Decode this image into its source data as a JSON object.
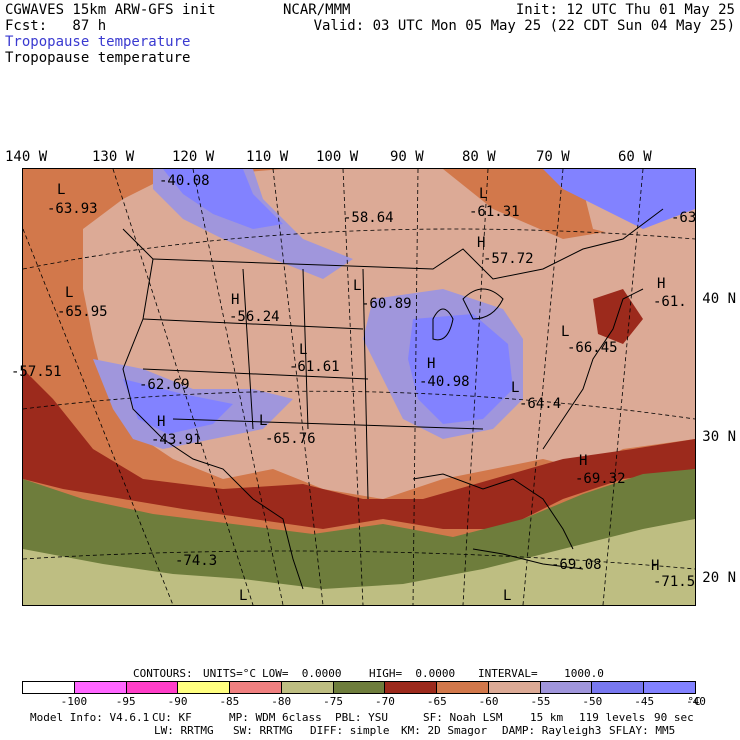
{
  "header": {
    "model": "CGWAVES 15km ARW-GFS init",
    "fcst": "Fcst:   87 h",
    "field_colored": "Tropopause temperature",
    "field_black": "Tropopause temperature",
    "org": "NCAR/MMM",
    "init": "Init: 12 UTC Thu 01 May 25",
    "valid": "Valid: 03 UTC Mon 05 May 25 (22 CDT Sun 04 May 25)"
  },
  "longitudes": [
    "140 W",
    "130 W",
    "120 W",
    "110 W",
    "100 W",
    "90 W",
    "80 W",
    "70 W",
    "60 W"
  ],
  "latitudes": [
    "40 N",
    "30 N",
    "20 N"
  ],
  "map_labels": [
    {
      "kind": "L",
      "text": "L"
    },
    {
      "kind": "value",
      "text": "-63.93"
    },
    {
      "kind": "value",
      "text": "-40.08"
    },
    {
      "kind": "value",
      "text": "-58.64"
    },
    {
      "kind": "L",
      "text": "L"
    },
    {
      "kind": "value",
      "text": "-61.31"
    },
    {
      "kind": "H",
      "text": "H"
    },
    {
      "kind": "value",
      "text": "-57.72"
    },
    {
      "kind": "value",
      "text": "-63"
    },
    {
      "kind": "L",
      "text": "L"
    },
    {
      "kind": "value",
      "text": "-65.95"
    },
    {
      "kind": "H",
      "text": "H"
    },
    {
      "kind": "value",
      "text": "-56.24"
    },
    {
      "kind": "L",
      "text": "L"
    },
    {
      "kind": "value",
      "text": "-60.89"
    },
    {
      "kind": "H",
      "text": "H"
    },
    {
      "kind": "value",
      "text": "-61."
    },
    {
      "kind": "L",
      "text": "L"
    },
    {
      "kind": "value",
      "text": "-66.45"
    },
    {
      "kind": "value",
      "text": "-57.51"
    },
    {
      "kind": "value",
      "text": "-62.69"
    },
    {
      "kind": "L",
      "text": "L"
    },
    {
      "kind": "value",
      "text": "-61.61"
    },
    {
      "kind": "H",
      "text": "H"
    },
    {
      "kind": "value",
      "text": "-40.98"
    },
    {
      "kind": "L",
      "text": "L"
    },
    {
      "kind": "value",
      "text": "-64.4"
    },
    {
      "kind": "H",
      "text": "H"
    },
    {
      "kind": "value",
      "text": "-43.91"
    },
    {
      "kind": "L",
      "text": "L"
    },
    {
      "kind": "value",
      "text": "-65.76"
    },
    {
      "kind": "H",
      "text": "H"
    },
    {
      "kind": "value",
      "text": "-69.32"
    },
    {
      "kind": "value",
      "text": "-74.3"
    },
    {
      "kind": "value",
      "text": "-69.08"
    },
    {
      "kind": "H",
      "text": "H"
    },
    {
      "kind": "value",
      "text": "-71.5"
    },
    {
      "kind": "L",
      "text": "L"
    },
    {
      "kind": "L",
      "text": "L"
    }
  ],
  "contours_line": {
    "contours": "CONTOURS:",
    "units": "UNITS=°C",
    "low": "LOW=  0.0000",
    "high": "HIGH=  0.0000",
    "interval": "INTERVAL=    1000.0"
  },
  "colorbar": {
    "colors": [
      "#ffffff",
      "#ff66ff",
      "#ff3ec8",
      "#ffff80",
      "#f08080",
      "#bebe82",
      "#6e7d3c",
      "#9c2a1c",
      "#d2784b",
      "#dcaa96",
      "#a096dc",
      "#7878f0",
      "#8282ff"
    ],
    "labels": [
      "-100",
      "-95",
      "-90",
      "-85",
      "-80",
      "-75",
      "-70",
      "-65",
      "-60",
      "-55",
      "-50",
      "-45",
      "-40",
      "°C"
    ]
  },
  "footer": {
    "line1": [
      "Model Info: V4.6.1",
      "CU: KF",
      "MP: WDM 6class",
      "PBL: YSU",
      "SF: Noah LSM",
      "15 km",
      "119 levels",
      "90 sec"
    ],
    "line2": [
      "LW: RRTMG",
      "SW: RRTMG",
      "DIFF: simple",
      "KM: 2D Smagor",
      "DAMP: Rayleigh3",
      "SFLAY: MM5"
    ]
  },
  "map_colors": {
    "blue_violet": "#8282ff",
    "lavender": "#a096dc",
    "rose": "#dcaa96",
    "orange": "#d2784b",
    "dark_red": "#9c2a1c",
    "olive": "#6e7d3c",
    "khaki": "#bebe82"
  }
}
